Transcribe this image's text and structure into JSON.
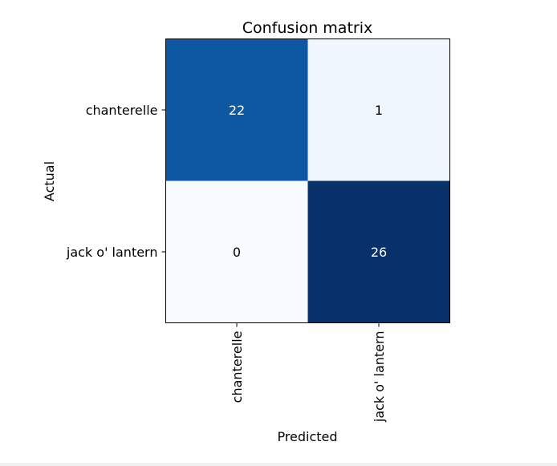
{
  "chart_data": {
    "type": "heatmap",
    "title": "Confusion matrix",
    "xlabel": "Predicted",
    "ylabel": "Actual",
    "row_labels": [
      "chanterelle",
      "jack o' lantern"
    ],
    "col_labels": [
      "chanterelle",
      "jack o' lantern"
    ],
    "values": [
      [
        22,
        1
      ],
      [
        0,
        26
      ]
    ],
    "colormap": "Blues",
    "colorbar": false,
    "grid": false
  }
}
